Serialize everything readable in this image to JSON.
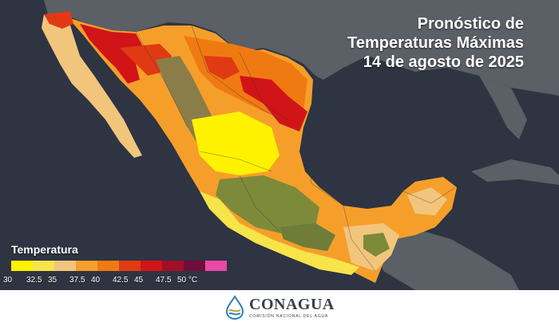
{
  "title": {
    "line1": "Pronóstico de",
    "line2": "Temperaturas Máximas",
    "line3": "14 de agosto de 2025"
  },
  "legend": {
    "title": "Temperatura",
    "unit": "°C",
    "colors": [
      "#fff200",
      "#f7e44a",
      "#f2c57d",
      "#f59f2a",
      "#f07a12",
      "#e03a14",
      "#d11418",
      "#a10f28",
      "#6e0e3a",
      "#e84aa6"
    ],
    "ticks": [
      "30",
      "32.5",
      "35",
      "37.5",
      "40",
      "42.5",
      "45",
      "47.5",
      "50 °C"
    ]
  },
  "map": {
    "ocean_color": "#2d3340",
    "land_color": "#5a5e66"
  },
  "footer": {
    "logo_name": "CONAGUA",
    "logo_subtitle": "COMISIÓN NACIONAL DEL AGUA"
  }
}
